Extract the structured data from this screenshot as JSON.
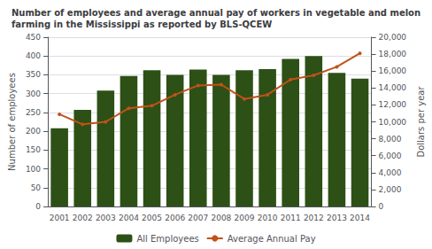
{
  "chart_data": {
    "type": "bar",
    "title": "Number of employees and average annual pay of workers in vegetable and melon\nfarming in the Mississippi as reported by BLS-QCEW",
    "categories": [
      "2001",
      "2002",
      "2003",
      "2004",
      "2005",
      "2006",
      "2007",
      "2008",
      "2009",
      "2010",
      "2011",
      "2012",
      "2013",
      "2014"
    ],
    "series": [
      {
        "name": "All Employees",
        "type": "bar",
        "color": "#2d5016",
        "values": [
          208,
          257,
          308,
          347,
          362,
          350,
          364,
          350,
          362,
          365,
          392,
          400,
          355,
          340
        ]
      },
      {
        "name": "Average Annual Pay",
        "type": "line",
        "color": "#c0521a",
        "marker": "circle",
        "axis": "y2",
        "values": [
          10900,
          9700,
          10000,
          11600,
          11900,
          13200,
          14300,
          14400,
          12700,
          13200,
          15000,
          15500,
          16500,
          18100
        ]
      }
    ],
    "ylabel": "Number of employees",
    "y2label": "Dollars per year",
    "ylim": [
      0,
      450
    ],
    "yticks": [
      0,
      50,
      100,
      150,
      200,
      250,
      300,
      350,
      400,
      450
    ],
    "y2lim": [
      0,
      20000
    ],
    "y2ticks": [
      0,
      {
        "value": 2000,
        "label": "2,000"
      },
      {
        "value": 4000,
        "label": "4,000"
      },
      {
        "value": 6000,
        "label": "6,000"
      },
      {
        "value": 8000,
        "label": "8,000"
      },
      {
        "value": 10000,
        "label": "10,000"
      },
      {
        "value": 12000,
        "label": "12,000"
      },
      {
        "value": 14000,
        "label": "14,000"
      },
      {
        "value": 16000,
        "label": "16,000"
      },
      {
        "value": 18000,
        "label": "18,000"
      },
      {
        "value": 20000,
        "label": "20,000"
      }
    ],
    "grid": true,
    "legend": "bottom"
  }
}
